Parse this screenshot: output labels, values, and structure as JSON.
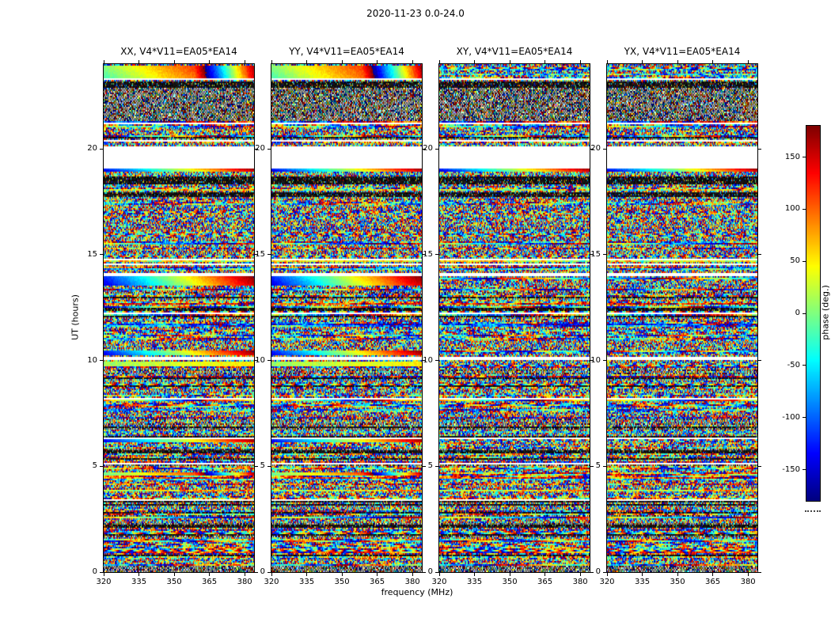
{
  "figure": {
    "title": "2020-11-23 0.0-24.0"
  },
  "chart_data": {
    "type": "heatmap",
    "panels": [
      {
        "pol": "XX",
        "title": "XX, V4*V11=EA05*EA14"
      },
      {
        "pol": "YY",
        "title": "YY, V4*V11=EA05*EA14"
      },
      {
        "pol": "XY",
        "title": "XY, V4*V11=EA05*EA14"
      },
      {
        "pol": "YX",
        "title": "YX, V4*V11=EA05*EA14"
      }
    ],
    "xlabel": "frequency (MHz)",
    "ylabel": "UT (hours)",
    "x_ticks": [
      320,
      335,
      350,
      365,
      380
    ],
    "xlim": [
      320,
      384
    ],
    "y_ticks": [
      0,
      5,
      10,
      15,
      20
    ],
    "ylim": [
      0,
      24
    ],
    "colorbar": {
      "label": "phase (deg.)",
      "ticks": [
        150,
        100,
        50,
        0,
        -50,
        -100,
        -150
      ],
      "lim": [
        -180,
        180
      ],
      "colormap": "jet"
    },
    "features": {
      "gaps": [
        [
          19.05,
          20.1
        ],
        [
          13.97,
          14.1
        ],
        [
          10.04,
          10.17
        ],
        [
          23.22,
          23.3
        ]
      ],
      "dark_bands": [
        [
          22.9,
          23.2
        ],
        [
          18.3,
          18.6
        ],
        [
          17.7,
          17.85
        ],
        [
          12.35,
          12.5
        ]
      ],
      "fine_texture": [
        [
          21.3,
          22.85
        ],
        [
          0.0,
          0.3
        ]
      ],
      "smooth_bands": [
        {
          "ut": [
            23.35,
            23.95
          ],
          "mode": "hot",
          "xx_yy_only": true
        },
        {
          "ut": [
            13.5,
            13.95
          ],
          "mode": "rainbow",
          "xx_yy_only": true
        },
        {
          "ut": [
            10.22,
            10.45
          ],
          "mode": "rainbow",
          "xx_yy_only": true
        },
        {
          "ut": [
            9.72,
            9.95
          ],
          "mode": "green",
          "xx_yy_only": true
        },
        {
          "ut": [
            4.55,
            4.72
          ],
          "mode": "hot",
          "xx_yy_only": true
        },
        {
          "ut": [
            6.12,
            6.3
          ],
          "mode": "rainbow",
          "xx_yy_only": true
        },
        {
          "ut": [
            18.95,
            19.05
          ],
          "mode": "rainbow",
          "xx_yy_only": false
        }
      ]
    }
  }
}
